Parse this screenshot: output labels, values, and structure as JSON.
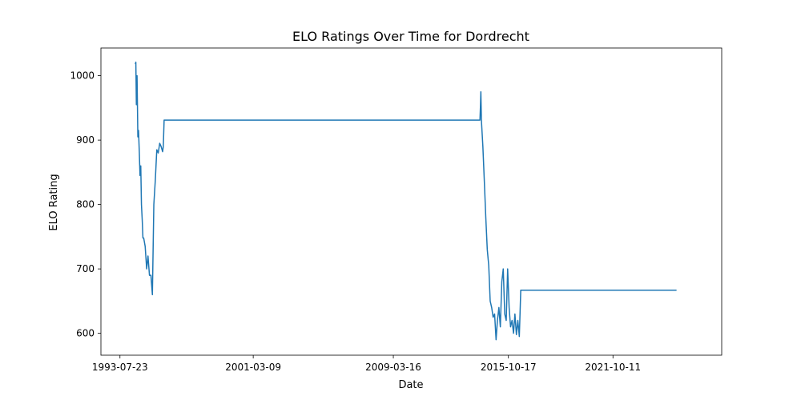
{
  "chart_data": {
    "type": "line",
    "title": "ELO Ratings Over Time for Dordrecht",
    "xlabel": "Date",
    "ylabel": "ELO Rating",
    "x_ticks": [
      "1993-07-23",
      "2001-03-09",
      "2009-03-16",
      "2015-10-17",
      "2021-10-11"
    ],
    "y_ticks": [
      600,
      700,
      800,
      900,
      1000
    ],
    "xlim": [
      "1992-06-20",
      "2028-01-01"
    ],
    "ylim": [
      566,
      1043
    ],
    "grid": false,
    "line_color": "#1f77b4",
    "series": [
      {
        "x": [
          "1994-06-10",
          "1994-06-20",
          "1994-07-01",
          "1994-07-15",
          "1994-08-01",
          "1994-08-15",
          "1994-09-01",
          "1994-09-15",
          "1994-10-01",
          "1994-10-15",
          "1994-11-01",
          "1994-11-15",
          "1994-12-01",
          "1995-01-01",
          "1995-02-01",
          "1995-03-01",
          "1995-04-01",
          "1995-05-01",
          "1995-06-01",
          "1995-07-01",
          "1995-08-01",
          "1995-09-01",
          "1995-10-01",
          "1995-11-01",
          "1995-12-01",
          "1996-01-01",
          "1996-01-15",
          "1996-02-01",
          "1996-03-01",
          "1996-04-01",
          "1996-05-01",
          "1996-06-01",
          "1996-07-01",
          "2014-03-01",
          "2014-03-10",
          "2014-03-20",
          "2014-04-01",
          "2014-05-01",
          "2014-06-01",
          "2014-07-01",
          "2014-08-01",
          "2014-09-01",
          "2014-10-01",
          "2014-11-01",
          "2014-12-01",
          "2015-01-01",
          "2015-02-01",
          "2015-03-01",
          "2015-04-01",
          "2015-05-01",
          "2015-06-01",
          "2015-07-01",
          "2015-08-01",
          "2015-09-01",
          "2015-10-01",
          "2015-11-01",
          "2015-12-01",
          "2016-01-01",
          "2016-02-01",
          "2016-03-01",
          "2016-04-01",
          "2016-05-01",
          "2016-06-01",
          "2016-07-01",
          "2016-08-01",
          "2016-09-01",
          "2016-10-01",
          "2016-11-01",
          "2016-12-01",
          "2017-01-01",
          "2025-06-01"
        ],
        "y": [
          1018,
          1021,
          955,
          1000,
          905,
          915,
          880,
          845,
          860,
          800,
          775,
          748,
          748,
          735,
          700,
          720,
          690,
          690,
          660,
          800,
          838,
          885,
          880,
          895,
          890,
          882,
          890,
          931,
          931,
          931,
          931,
          931,
          931,
          931,
          950,
          975,
          930,
          890,
          835,
          780,
          730,
          705,
          650,
          640,
          625,
          630,
          590,
          620,
          640,
          610,
          680,
          700,
          630,
          620,
          700,
          640,
          610,
          620,
          600,
          630,
          598,
          620,
          595,
          667,
          667,
          667,
          667,
          667,
          667,
          667,
          667
        ]
      }
    ]
  }
}
